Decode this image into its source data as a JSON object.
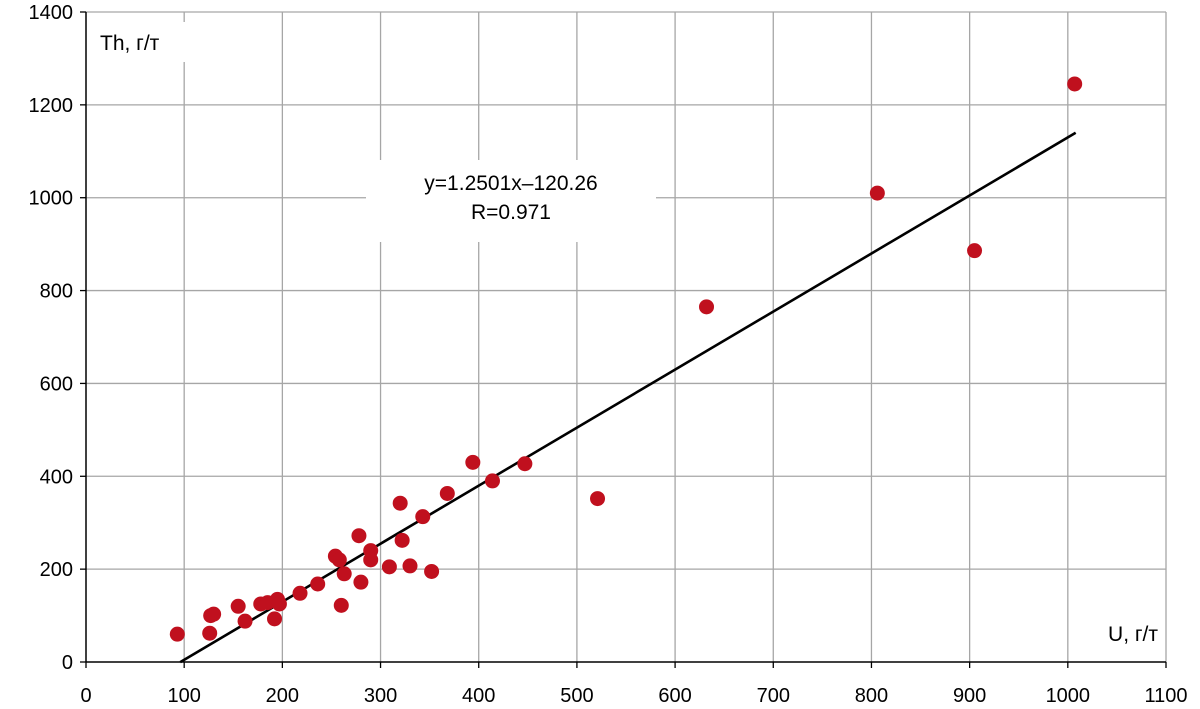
{
  "chart_data": {
    "type": "scatter",
    "xlabel": "U, г/т",
    "ylabel": "Th, г/т",
    "xlim": [
      0,
      1100
    ],
    "ylim": [
      0,
      1400
    ],
    "x_ticks": [
      0,
      100,
      200,
      300,
      400,
      500,
      600,
      700,
      800,
      900,
      1000,
      1100
    ],
    "y_ticks": [
      0,
      200,
      400,
      600,
      800,
      1000,
      1200,
      1400
    ],
    "grid": true,
    "legend": "none",
    "point_color": "#c0101e",
    "trendline_color": "#000000",
    "points": [
      {
        "x": 93,
        "y": 60
      },
      {
        "x": 126,
        "y": 62
      },
      {
        "x": 127,
        "y": 100
      },
      {
        "x": 130,
        "y": 103
      },
      {
        "x": 155,
        "y": 120
      },
      {
        "x": 162,
        "y": 88
      },
      {
        "x": 178,
        "y": 125
      },
      {
        "x": 185,
        "y": 128
      },
      {
        "x": 192,
        "y": 93
      },
      {
        "x": 195,
        "y": 135
      },
      {
        "x": 197,
        "y": 125
      },
      {
        "x": 218,
        "y": 148
      },
      {
        "x": 236,
        "y": 168
      },
      {
        "x": 254,
        "y": 228
      },
      {
        "x": 258,
        "y": 220
      },
      {
        "x": 260,
        "y": 122
      },
      {
        "x": 263,
        "y": 190
      },
      {
        "x": 278,
        "y": 272
      },
      {
        "x": 280,
        "y": 172
      },
      {
        "x": 290,
        "y": 240
      },
      {
        "x": 290,
        "y": 220
      },
      {
        "x": 309,
        "y": 205
      },
      {
        "x": 320,
        "y": 342
      },
      {
        "x": 322,
        "y": 262
      },
      {
        "x": 330,
        "y": 207
      },
      {
        "x": 343,
        "y": 313
      },
      {
        "x": 352,
        "y": 195
      },
      {
        "x": 368,
        "y": 363
      },
      {
        "x": 394,
        "y": 430
      },
      {
        "x": 414,
        "y": 390
      },
      {
        "x": 447,
        "y": 427
      },
      {
        "x": 521,
        "y": 352
      },
      {
        "x": 632,
        "y": 765
      },
      {
        "x": 806,
        "y": 1010
      },
      {
        "x": 905,
        "y": 886
      },
      {
        "x": 1007,
        "y": 1245
      }
    ],
    "trendline": {
      "slope": 1.2501,
      "intercept": -120.26,
      "x_range": [
        96,
        1008
      ],
      "equation": "y=1.2501x–120.26",
      "r_label": "R=0.971"
    }
  }
}
